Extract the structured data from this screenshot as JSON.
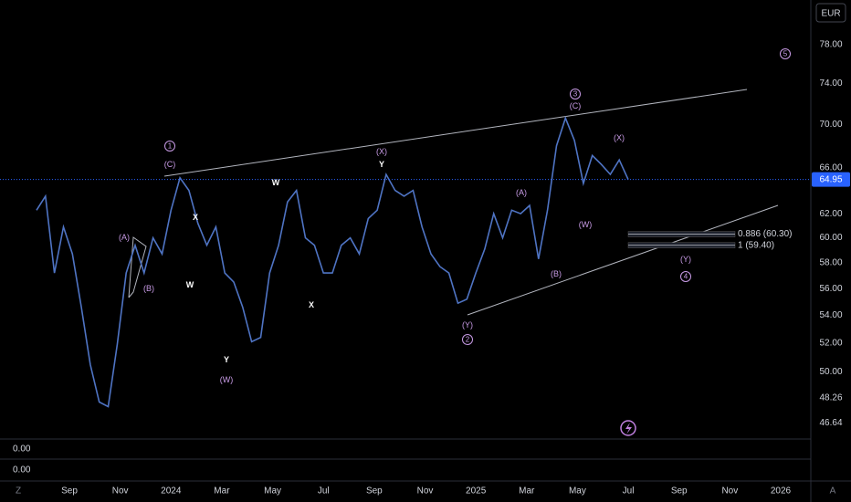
{
  "currency": "EUR",
  "chart_data": {
    "type": "line",
    "color": "#4f74c4",
    "log_scale": true,
    "ylim": [
      45.7,
      82.9
    ],
    "yticks": [
      {
        "value": 78,
        "label": "78.00"
      },
      {
        "value": 74,
        "label": "74.00"
      },
      {
        "value": 70,
        "label": "70.00"
      },
      {
        "value": 66,
        "label": "66.00"
      },
      {
        "value": 62,
        "label": "62.00"
      },
      {
        "value": 60,
        "label": "60.00"
      },
      {
        "value": 58,
        "label": "58.00"
      },
      {
        "value": 56,
        "label": "56.00"
      },
      {
        "value": 54,
        "label": "54.00"
      },
      {
        "value": 52,
        "label": "52.00"
      },
      {
        "value": 50,
        "label": "50.00"
      },
      48.26,
      46.64
    ],
    "x_labels": [
      "Sep",
      "Nov",
      "2024",
      "Mar",
      "May",
      "Jul",
      "Sep",
      "Nov",
      "2025",
      "Mar",
      "May",
      "Jul",
      "Sep",
      "Nov",
      "2026"
    ],
    "values": [
      62.3,
      63.5,
      57.2,
      60.9,
      58.7,
      54.6,
      50.5,
      48.0,
      47.7,
      51.9,
      57.2,
      59.4,
      57.2,
      60.0,
      58.7,
      62.3,
      65.1,
      64.0,
      61.2,
      59.4,
      60.9,
      57.2,
      56.5,
      54.6,
      52.1,
      52.4,
      57.2,
      59.4,
      63.0,
      64.0,
      60.0,
      59.4,
      57.2,
      57.2,
      59.4,
      60.0,
      58.7,
      61.6,
      62.3,
      65.4,
      64.0,
      63.5,
      64.0,
      60.9,
      58.7,
      57.7,
      57.2,
      54.9,
      55.2,
      57.2,
      59.1,
      62.0,
      60.0,
      62.3,
      62.0,
      62.7,
      58.3,
      62.3,
      68.0,
      70.6,
      68.5,
      64.6,
      67.1,
      66.3,
      65.4,
      66.7,
      64.95
    ],
    "annotations": [
      {
        "text": "1",
        "circled": true
      },
      {
        "text": "(C)"
      },
      {
        "text": "(A)"
      },
      {
        "text": "(B)"
      },
      {
        "text": "X"
      },
      {
        "text": "W"
      },
      {
        "text": "Y"
      },
      {
        "text": "(W)"
      },
      {
        "text": "W"
      },
      {
        "text": "X"
      },
      {
        "text": "Y"
      },
      {
        "text": "(X)"
      },
      {
        "text": "(Y)"
      },
      {
        "text": "2",
        "circled": true
      },
      {
        "text": "(A)"
      },
      {
        "text": "(B)"
      },
      {
        "text": "3",
        "circled": true
      },
      {
        "text": "(C)"
      },
      {
        "text": "(W)"
      },
      {
        "text": "(X)"
      },
      {
        "text": "(Y)"
      },
      {
        "text": "4",
        "circled": true
      },
      {
        "text": "5",
        "circled": true
      }
    ],
    "fib_levels": [
      {
        "label": "0.886 (60.30)",
        "value": 60.3
      },
      {
        "label": "1 (59.40)",
        "value": 59.4
      }
    ]
  },
  "lower_panes": [
    "0.00",
    "0.00"
  ],
  "corner_labels": [
    "Z",
    "A"
  ]
}
